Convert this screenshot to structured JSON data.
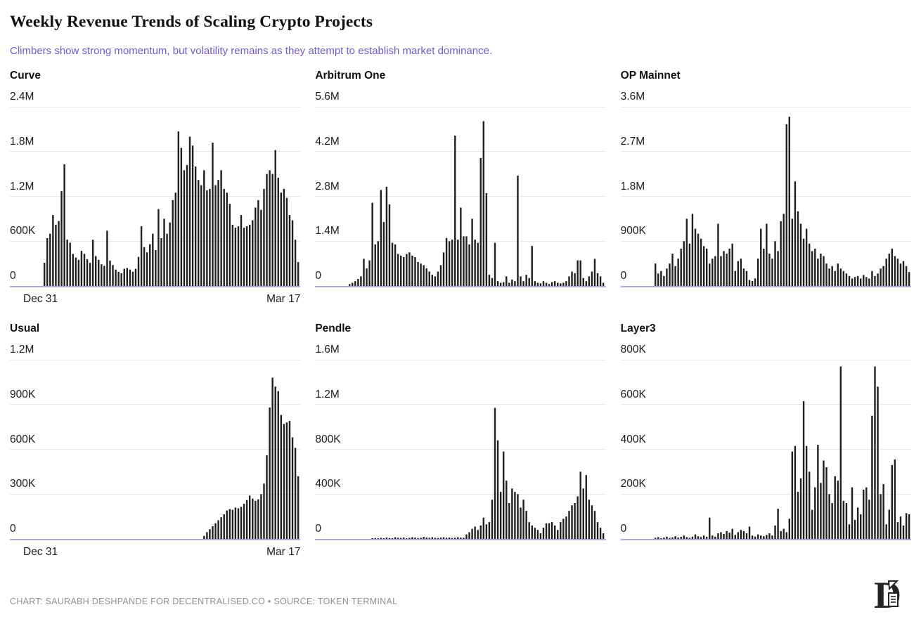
{
  "header": {
    "title": "Weekly Revenue Trends of Scaling Crypto Projects",
    "subtitle": "Climbers show strong momentum, but volatility remains as they attempt to establish market dominance."
  },
  "footer": {
    "credit": "CHART: SAURABH DESHPANDE FOR DECENTRALISED.CO • SOURCE: TOKEN TERMINAL",
    "logo": "decentralised-co-D-monogram"
  },
  "colors": {
    "subtitle_accent": "#7458c8",
    "bar": "#1f1f1f",
    "gridline": "#e9e8e5",
    "zero_baseline": "#b3a6d9",
    "tick_label": "#1c1c1c",
    "footer_text": "#8f8f8f"
  },
  "chart_data": [
    {
      "type": "bar",
      "name": "Curve",
      "values_unit": "thousand USD (weekly revenue)",
      "ylim": [
        0,
        2400
      ],
      "ytick_labels": [
        "2.4M",
        "1.8M",
        "1.2M",
        "600K",
        "0"
      ],
      "ytick_values": [
        2400,
        1800,
        1200,
        600,
        0
      ],
      "x_start_label": "Dec 31",
      "x_end_label": "Mar 17",
      "show_x_labels": true,
      "grid": "horizontal",
      "values": [
        310,
        640,
        700,
        950,
        820,
        870,
        1270,
        1630,
        620,
        580,
        430,
        380,
        350,
        470,
        430,
        360,
        310,
        620,
        400,
        350,
        290,
        270,
        740,
        340,
        280,
        220,
        190,
        170,
        230,
        240,
        220,
        190,
        230,
        390,
        800,
        520,
        450,
        560,
        700,
        480,
        1030,
        640,
        900,
        700,
        850,
        1150,
        1250,
        2070,
        1850,
        1550,
        1620,
        2000,
        1880,
        1600,
        1420,
        1350,
        1550,
        1280,
        1300,
        1920,
        1350,
        1420,
        1550,
        1300,
        1250,
        1100,
        820,
        780,
        800,
        950,
        780,
        800,
        820,
        880,
        1050,
        1150,
        1020,
        1300,
        1500,
        1550,
        1500,
        1820,
        1450,
        1250,
        1300,
        1180,
        950,
        880,
        620,
        320
      ]
    },
    {
      "type": "bar",
      "name": "Arbitrum One",
      "values_unit": "thousand USD (weekly revenue)",
      "ylim": [
        0,
        5600
      ],
      "ytick_labels": [
        "5.6M",
        "4.2M",
        "2.8M",
        "1.4M",
        "0"
      ],
      "ytick_values": [
        5600,
        4200,
        2800,
        1400,
        0
      ],
      "x_start_label": "Dec 31",
      "x_end_label": "Mar 17",
      "show_x_labels": false,
      "grid": "horizontal",
      "values": [
        60,
        100,
        150,
        220,
        300,
        850,
        550,
        800,
        2600,
        1300,
        1400,
        3000,
        2000,
        3100,
        2550,
        1350,
        1300,
        1000,
        950,
        900,
        1000,
        1050,
        950,
        900,
        750,
        700,
        650,
        550,
        450,
        350,
        300,
        450,
        650,
        1050,
        1500,
        1400,
        1450,
        4700,
        1450,
        2450,
        1550,
        1550,
        1300,
        2100,
        1450,
        1350,
        4000,
        5150,
        2900,
        350,
        250,
        1350,
        150,
        100,
        120,
        300,
        100,
        200,
        150,
        3450,
        300,
        150,
        350,
        250,
        1250,
        150,
        100,
        80,
        150,
        100,
        60,
        120,
        150,
        100,
        80,
        100,
        150,
        300,
        450,
        400,
        800,
        800,
        250,
        150,
        300,
        450,
        850,
        400,
        300,
        100
      ]
    },
    {
      "type": "bar",
      "name": "OP Mainnet",
      "values_unit": "thousand USD (weekly revenue)",
      "ylim": [
        0,
        3600
      ],
      "ytick_labels": [
        "3.6M",
        "2.7M",
        "1.8M",
        "900K",
        "0"
      ],
      "ytick_values": [
        3600,
        2700,
        1800,
        900,
        0
      ],
      "x_start_label": "Dec 31",
      "x_end_label": "Mar 17",
      "show_x_labels": false,
      "grid": "horizontal",
      "values": [
        450,
        250,
        300,
        200,
        350,
        450,
        650,
        400,
        550,
        750,
        900,
        1350,
        850,
        1450,
        1150,
        1050,
        950,
        800,
        750,
        450,
        550,
        600,
        1250,
        600,
        700,
        650,
        750,
        850,
        300,
        500,
        550,
        350,
        300,
        120,
        100,
        150,
        550,
        1150,
        750,
        1250,
        650,
        550,
        900,
        700,
        1300,
        1450,
        3250,
        3400,
        1350,
        2100,
        1500,
        1250,
        950,
        1150,
        850,
        700,
        750,
        550,
        650,
        600,
        450,
        350,
        400,
        300,
        450,
        350,
        300,
        250,
        200,
        150,
        180,
        200,
        150,
        220,
        180,
        150,
        300,
        200,
        250,
        350,
        400,
        550,
        650,
        750,
        600,
        550,
        450,
        500,
        400,
        280
      ]
    },
    {
      "type": "bar",
      "name": "Usual",
      "values_unit": "thousand USD (weekly revenue)",
      "ylim": [
        0,
        1200
      ],
      "ytick_labels": [
        "1.2M",
        "900K",
        "600K",
        "300K",
        "0"
      ],
      "ytick_values": [
        1200,
        900,
        600,
        300,
        0
      ],
      "x_start_label": "Dec 31",
      "x_end_label": "Mar 17",
      "show_x_labels": true,
      "grid": "horizontal",
      "values": [
        0,
        0,
        0,
        0,
        0,
        0,
        0,
        0,
        0,
        0,
        0,
        0,
        0,
        0,
        0,
        0,
        0,
        0,
        0,
        0,
        0,
        0,
        0,
        0,
        0,
        0,
        0,
        0,
        0,
        0,
        0,
        0,
        0,
        0,
        0,
        0,
        0,
        0,
        0,
        0,
        0,
        0,
        0,
        0,
        0,
        0,
        0,
        0,
        0,
        0,
        0,
        0,
        0,
        0,
        0,
        0,
        20,
        45,
        65,
        85,
        105,
        125,
        145,
        165,
        190,
        200,
        195,
        210,
        205,
        215,
        235,
        260,
        290,
        270,
        255,
        265,
        300,
        370,
        560,
        880,
        1080,
        1020,
        990,
        830,
        770,
        780,
        790,
        680,
        610,
        420
      ]
    },
    {
      "type": "bar",
      "name": "Pendle",
      "values_unit": "thousand USD (weekly revenue)",
      "ylim": [
        0,
        1600
      ],
      "ytick_labels": [
        "1.6M",
        "1.2M",
        "800K",
        "400K",
        "0"
      ],
      "ytick_values": [
        1600,
        1200,
        800,
        400,
        0
      ],
      "x_start_label": "Dec 31",
      "x_end_label": "Mar 17",
      "show_x_labels": false,
      "grid": "horizontal",
      "values": [
        0,
        0,
        0,
        0,
        0,
        0,
        0,
        0,
        5,
        8,
        4,
        10,
        6,
        12,
        8,
        5,
        15,
        10,
        8,
        12,
        6,
        10,
        15,
        12,
        8,
        10,
        18,
        12,
        10,
        15,
        10,
        8,
        12,
        15,
        10,
        12,
        8,
        10,
        15,
        12,
        10,
        40,
        60,
        90,
        110,
        80,
        120,
        190,
        130,
        150,
        350,
        1170,
        880,
        420,
        780,
        520,
        320,
        450,
        420,
        400,
        280,
        350,
        250,
        150,
        120,
        100,
        80,
        50,
        100,
        140,
        140,
        150,
        120,
        80,
        150,
        180,
        200,
        250,
        300,
        320,
        380,
        600,
        450,
        570,
        350,
        300,
        250,
        150,
        100,
        50
      ]
    },
    {
      "type": "bar",
      "name": "Layer3",
      "values_unit": "thousand USD (weekly revenue)",
      "ylim": [
        0,
        800
      ],
      "ytick_labels": [
        "800K",
        "600K",
        "400K",
        "200K",
        "0"
      ],
      "ytick_values": [
        800,
        600,
        400,
        200,
        0
      ],
      "x_start_label": "Dec 31",
      "x_end_label": "Mar 17",
      "show_x_labels": false,
      "grid": "horizontal",
      "values": [
        5,
        8,
        3,
        6,
        10,
        4,
        7,
        12,
        6,
        9,
        15,
        8,
        5,
        10,
        20,
        12,
        8,
        15,
        10,
        95,
        15,
        10,
        25,
        30,
        22,
        35,
        28,
        45,
        18,
        30,
        40,
        35,
        25,
        55,
        15,
        10,
        20,
        15,
        12,
        18,
        25,
        15,
        60,
        135,
        35,
        45,
        30,
        90,
        390,
        415,
        210,
        270,
        615,
        415,
        300,
        130,
        230,
        420,
        250,
        350,
        320,
        200,
        160,
        280,
        260,
        770,
        170,
        160,
        65,
        230,
        85,
        140,
        110,
        220,
        230,
        175,
        550,
        770,
        680,
        200,
        245,
        65,
        130,
        330,
        355,
        75,
        100,
        60,
        115,
        110
      ]
    }
  ]
}
